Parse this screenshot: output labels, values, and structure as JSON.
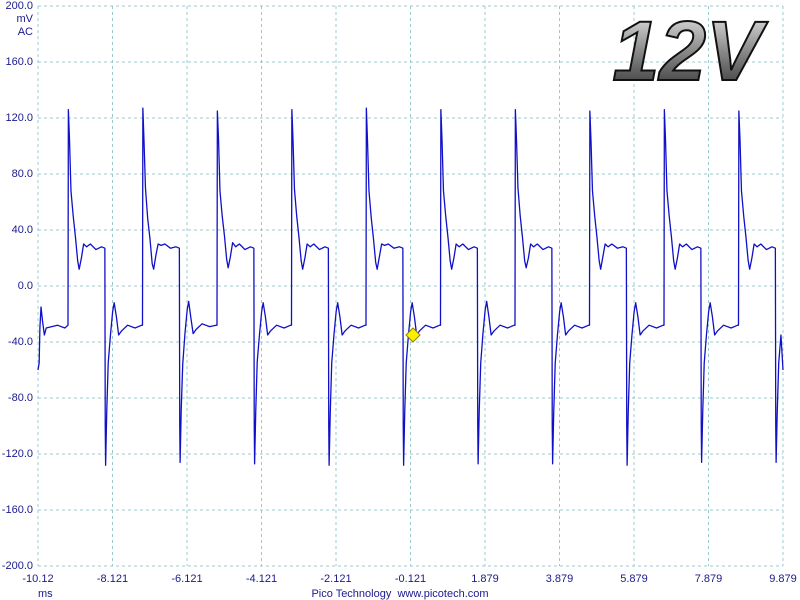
{
  "chart_data": {
    "type": "line",
    "title": "12V",
    "y_unit": "mV",
    "coupling": "AC",
    "x_label": "ms",
    "footer": "Pico Technology  www.picotech.com",
    "color": "#1010c8",
    "grid": true,
    "xlim": [
      -10.121,
      9.879
    ],
    "xticks": [
      {
        "value": -10.121,
        "label": "-10.12"
      },
      -8.121,
      -6.121,
      -4.121,
      -2.121,
      -0.121,
      1.879,
      3.879,
      5.879,
      7.879,
      9.879
    ],
    "ylim": [
      -200,
      200
    ],
    "yticks": [
      {
        "value": -200,
        "label": "-200.0"
      },
      {
        "value": -160,
        "label": "-160.0"
      },
      {
        "value": -120,
        "label": "-120.0"
      },
      {
        "value": -80,
        "label": "-80.0"
      },
      {
        "value": -40,
        "label": "-40.0"
      },
      {
        "value": 0,
        "label": "0.0"
      },
      {
        "value": 40,
        "label": "40.0"
      },
      {
        "value": 80,
        "label": "80.0"
      },
      {
        "value": 120,
        "label": "120.0"
      },
      {
        "value": 160,
        "label": "160.0"
      },
      {
        "value": 200,
        "label": "200.0"
      }
    ],
    "x": [
      -10.121,
      -10.09,
      -10.07,
      -10.04,
      -10.0,
      -9.95,
      -9.9,
      -9.6,
      -9.4,
      -9.316,
      -9.306,
      -9.276,
      -9.236,
      -9.176,
      -9.116,
      -9.056,
      -9.016,
      -8.956,
      -8.896,
      -8.816,
      -8.716,
      -8.566,
      -8.416,
      -8.326,
      -8.316,
      -8.306,
      -8.276,
      -8.236,
      -8.176,
      -8.116,
      -8.076,
      -8.016,
      -7.956,
      -7.876,
      -7.716,
      -7.516,
      -7.336,
      -7.316,
      -7.306,
      -7.276,
      -7.236,
      -7.176,
      -7.116,
      -7.056,
      -7.016,
      -6.956,
      -6.896,
      -6.816,
      -6.716,
      -6.566,
      -6.416,
      -6.326,
      -6.316,
      -6.306,
      -6.276,
      -6.236,
      -6.176,
      -6.116,
      -6.076,
      -6.016,
      -5.956,
      -5.876,
      -5.716,
      -5.516,
      -5.336,
      -5.316,
      -5.306,
      -5.276,
      -5.236,
      -5.176,
      -5.116,
      -5.056,
      -5.016,
      -4.956,
      -4.896,
      -4.816,
      -4.716,
      -4.566,
      -4.416,
      -4.326,
      -4.316,
      -4.306,
      -4.276,
      -4.236,
      -4.176,
      -4.116,
      -4.076,
      -4.016,
      -3.956,
      -3.876,
      -3.716,
      -3.516,
      -3.336,
      -3.316,
      -3.306,
      -3.276,
      -3.236,
      -3.176,
      -3.116,
      -3.056,
      -3.016,
      -2.956,
      -2.896,
      -2.816,
      -2.716,
      -2.566,
      -2.416,
      -2.326,
      -2.316,
      -2.306,
      -2.276,
      -2.236,
      -2.176,
      -2.116,
      -2.076,
      -2.016,
      -1.956,
      -1.876,
      -1.716,
      -1.516,
      -1.336,
      -1.316,
      -1.306,
      -1.276,
      -1.236,
      -1.176,
      -1.116,
      -1.056,
      -1.016,
      -0.956,
      -0.896,
      -0.816,
      -0.716,
      -0.566,
      -0.416,
      -0.326,
      -0.316,
      -0.306,
      -0.276,
      -0.236,
      -0.176,
      -0.116,
      -0.076,
      -0.016,
      0.044,
      0.124,
      0.284,
      0.484,
      0.664,
      0.684,
      0.694,
      0.724,
      0.764,
      0.824,
      0.884,
      0.944,
      0.984,
      1.044,
      1.104,
      1.184,
      1.284,
      1.434,
      1.584,
      1.674,
      1.684,
      1.694,
      1.724,
      1.764,
      1.824,
      1.884,
      1.924,
      1.984,
      2.044,
      2.124,
      2.284,
      2.484,
      2.664,
      2.684,
      2.694,
      2.724,
      2.764,
      2.824,
      2.884,
      2.944,
      2.984,
      3.044,
      3.104,
      3.184,
      3.284,
      3.434,
      3.584,
      3.674,
      3.684,
      3.694,
      3.724,
      3.764,
      3.824,
      3.884,
      3.924,
      3.984,
      4.044,
      4.124,
      4.284,
      4.484,
      4.664,
      4.684,
      4.694,
      4.724,
      4.764,
      4.824,
      4.884,
      4.944,
      4.984,
      5.044,
      5.104,
      5.184,
      5.284,
      5.434,
      5.584,
      5.674,
      5.684,
      5.694,
      5.724,
      5.764,
      5.824,
      5.884,
      5.924,
      5.984,
      6.044,
      6.124,
      6.284,
      6.484,
      6.664,
      6.684,
      6.694,
      6.724,
      6.764,
      6.824,
      6.884,
      6.944,
      6.984,
      7.044,
      7.104,
      7.184,
      7.284,
      7.434,
      7.584,
      7.674,
      7.684,
      7.694,
      7.724,
      7.764,
      7.824,
      7.884,
      7.924,
      7.984,
      8.044,
      8.124,
      8.284,
      8.484,
      8.664,
      8.684,
      8.694,
      8.724,
      8.764,
      8.824,
      8.884,
      8.944,
      8.984,
      9.044,
      9.104,
      9.184,
      9.284,
      9.434,
      9.584,
      9.674,
      9.684,
      9.694,
      9.724,
      9.764,
      9.824,
      9.879
    ],
    "values": [
      -60,
      -55,
      -30,
      -15,
      -25,
      -35,
      -30,
      -28,
      -30,
      -28,
      126,
      105,
      68,
      50,
      35,
      18,
      12,
      20,
      30,
      28,
      30,
      26,
      28,
      27,
      -100,
      -128,
      -90,
      -55,
      -35,
      -18,
      -12,
      -22,
      -35,
      -32,
      -28,
      -30,
      -28,
      -28,
      127,
      104,
      70,
      48,
      34,
      16,
      12,
      22,
      30,
      29,
      30,
      27,
      28,
      27,
      -100,
      -126,
      -88,
      -56,
      -34,
      -17,
      -11,
      -23,
      -34,
      -31,
      -27,
      -29,
      -28,
      -28,
      125,
      106,
      68,
      50,
      36,
      19,
      13,
      21,
      31,
      28,
      30,
      26,
      28,
      27,
      -100,
      -127,
      -90,
      -54,
      -35,
      -18,
      -12,
      -22,
      -35,
      -32,
      -28,
      -30,
      -28,
      -28,
      126,
      105,
      69,
      50,
      35,
      18,
      12,
      20,
      30,
      28,
      30,
      26,
      28,
      27,
      -100,
      -128,
      -91,
      -55,
      -35,
      -18,
      -12,
      -22,
      -35,
      -32,
      -28,
      -30,
      -28,
      -28,
      127,
      104,
      68,
      49,
      34,
      17,
      12,
      21,
      30,
      29,
      30,
      27,
      28,
      27,
      -100,
      -128,
      -90,
      -55,
      -35,
      -18,
      -12,
      -22,
      -35,
      -32,
      -28,
      -30,
      -28,
      -28,
      126,
      105,
      68,
      50,
      35,
      18,
      12,
      20,
      30,
      28,
      30,
      26,
      28,
      27,
      -100,
      -127,
      -89,
      -55,
      -34,
      -17,
      -11,
      -22,
      -35,
      -32,
      -28,
      -30,
      -28,
      -28,
      126,
      105,
      70,
      50,
      35,
      18,
      13,
      20,
      30,
      28,
      30,
      26,
      28,
      27,
      -100,
      -127,
      -90,
      -55,
      -35,
      -18,
      -12,
      -22,
      -35,
      -32,
      -28,
      -30,
      -28,
      -28,
      125,
      104,
      68,
      50,
      35,
      18,
      12,
      21,
      30,
      28,
      30,
      27,
      28,
      27,
      -100,
      -128,
      -90,
      -55,
      -35,
      -18,
      -12,
      -22,
      -35,
      -32,
      -28,
      -30,
      -28,
      -28,
      126,
      105,
      68,
      50,
      35,
      18,
      12,
      20,
      30,
      28,
      30,
      26,
      28,
      27,
      -100,
      -126,
      -90,
      -55,
      -35,
      -18,
      -12,
      -22,
      -35,
      -32,
      -28,
      -30,
      -28,
      -28,
      125,
      105,
      68,
      50,
      35,
      18,
      12,
      20,
      30,
      28,
      30,
      26,
      28,
      27,
      -100,
      -126,
      -90,
      -55,
      -35,
      -60
    ]
  }
}
